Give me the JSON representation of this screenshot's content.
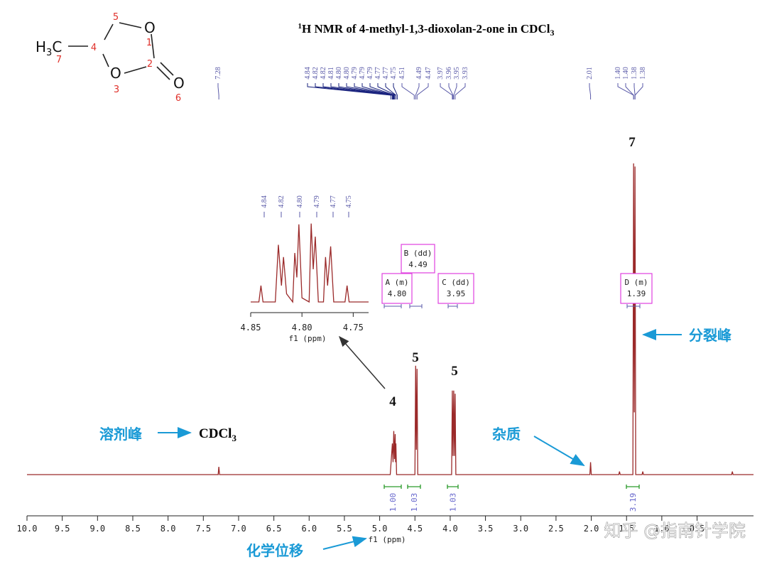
{
  "title": {
    "sup": "1",
    "main": "H NMR of 4-methyl-1,3-dioxolan-2-one in CDCl",
    "sub": "3"
  },
  "molecule": {
    "methyl": {
      "H": "H",
      "sub": "3",
      "C": "C"
    },
    "oxygens": [
      "O",
      "O",
      "O"
    ],
    "numbers": [
      "1",
      "2",
      "3",
      "4",
      "5",
      "6",
      "7"
    ]
  },
  "chart_data": [
    {
      "type": "line",
      "x_label": "f1 (ppm)",
      "color": "#9b2a2a",
      "x": [
        10.0,
        7.29,
        7.28,
        7.27,
        4.85,
        4.82,
        4.81,
        4.8,
        4.79,
        4.78,
        4.775,
        4.77,
        4.76,
        4.5,
        4.49,
        4.48,
        4.47,
        4.46,
        3.98,
        3.97,
        3.96,
        3.95,
        3.94,
        3.93,
        3.92,
        2.02,
        2.01,
        2.0,
        1.61,
        1.6,
        1.59,
        1.41,
        1.4,
        1.39,
        1.38,
        1.37,
        1.28,
        1.27,
        1.26,
        0.01,
        0.0,
        -0.01,
        -0.3
      ],
      "values": [
        0,
        0,
        2.5,
        0,
        0,
        10,
        4,
        14,
        5,
        13,
        4,
        10,
        0,
        0,
        35,
        8,
        34,
        0,
        0,
        27,
        6,
        27,
        6,
        26,
        0,
        0,
        4,
        0,
        0,
        1,
        0,
        0,
        100,
        20,
        99,
        0,
        0,
        1,
        0,
        0,
        1,
        0,
        0
      ],
      "xlim": [
        10.0,
        -0.3
      ],
      "ylim": [
        0,
        100
      ],
      "xticks": [
        {
          "value": 10,
          "label": "10.0"
        },
        9.5,
        {
          "value": 9,
          "label": "9.0"
        },
        8.5,
        {
          "value": 8,
          "label": "8.0"
        },
        7.5,
        {
          "value": 7,
          "label": "7.0"
        },
        6.5,
        {
          "value": 6,
          "label": "6.0"
        },
        5.5,
        {
          "value": 5,
          "label": "5.0"
        },
        4.5,
        {
          "value": 4,
          "label": "4.0"
        },
        3.5,
        {
          "value": 3,
          "label": "3.0"
        },
        2.5,
        {
          "value": 2,
          "label": "2.0"
        },
        1.5,
        {
          "value": 1,
          "label": "1.0"
        },
        0.5
      ],
      "peak_labels": [
        "7.28",
        "4.84",
        "4.82",
        "4.82",
        "4.81",
        "4.80",
        "4.80",
        "4.79",
        "4.79",
        "4.79",
        "4.77",
        "4.77",
        "4.75",
        "4.51",
        "4.49",
        "4.47",
        "3.97",
        "3.96",
        "3.95",
        "3.93",
        "2.01",
        "1.40",
        "1.40",
        "1.38",
        "1.38"
      ]
    },
    {
      "type": "line",
      "x_label": "f1 (ppm)",
      "color": "#9b2a2a",
      "x": [
        4.85,
        4.842,
        4.84,
        4.838,
        4.826,
        4.823,
        4.82,
        4.818,
        4.815,
        4.809,
        4.807,
        4.805,
        4.803,
        4.8,
        4.793,
        4.791,
        4.789,
        4.787,
        4.784,
        4.779,
        4.777,
        4.775,
        4.772,
        4.769,
        4.758,
        4.756,
        4.754,
        4.735
      ],
      "values": [
        0,
        0,
        20,
        0,
        0,
        70,
        20,
        55,
        10,
        0,
        60,
        30,
        95,
        5,
        0,
        96,
        40,
        80,
        0,
        0,
        55,
        20,
        68,
        0,
        0,
        20,
        0,
        0
      ],
      "xlim": [
        4.85,
        4.735
      ],
      "ylim": [
        0,
        100
      ],
      "xticks": [
        4.85,
        {
          "value": 4.8,
          "label": "4.80"
        },
        4.75
      ],
      "peak_labels": [
        "4.84",
        "4.82",
        "4.80",
        "4.79",
        "4.77",
        "4.75"
      ]
    }
  ],
  "assignments": [
    "4",
    "5",
    "5",
    "7"
  ],
  "multiplets": [
    {
      "name": "A (m)",
      "shift": "4.80"
    },
    {
      "name": "B (dd)",
      "shift": "4.49"
    },
    {
      "name": "C (dd)",
      "shift": "3.95"
    },
    {
      "name": "D (m)",
      "shift": "1.39"
    }
  ],
  "integrals": [
    "1.00",
    "1.03",
    "1.03",
    "3.19"
  ],
  "annotations": {
    "solvent_peak": "溶剂峰",
    "solvent": {
      "main": "CDCl",
      "sub": "3"
    },
    "impurity": "杂质",
    "splitting": "分裂峰",
    "chemical_shift": "化学位移",
    "watermark": "知乎 @指南针学院"
  }
}
